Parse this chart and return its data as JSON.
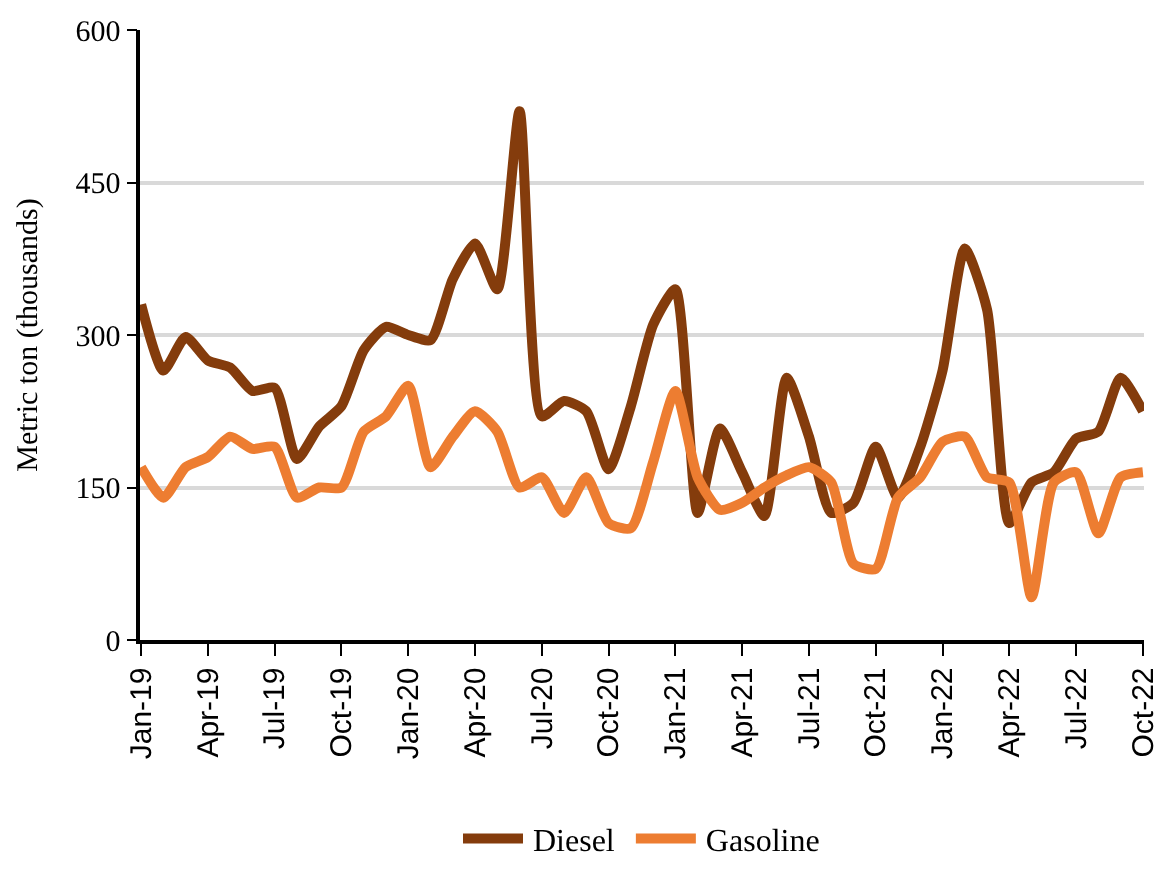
{
  "chart_data": {
    "type": "line",
    "ylabel": "Metric ton (thousands)",
    "categories": [
      "Jan-19",
      null,
      null,
      "Apr-19",
      null,
      null,
      "Jul-19",
      null,
      null,
      "Oct-19",
      null,
      null,
      "Jan-20",
      null,
      null,
      "Apr-20",
      null,
      null,
      "Jul-20",
      null,
      null,
      "Oct-20",
      null,
      null,
      "Jan-21",
      null,
      null,
      "Apr-21",
      null,
      null,
      "Jul-21",
      null,
      null,
      "Oct-21",
      null,
      null,
      "Jan-22",
      null,
      null,
      "Apr-22",
      null,
      null,
      "Jul-22",
      null,
      null,
      "Oct-22"
    ],
    "series": [
      {
        "name": "Diesel",
        "color": "#843c0c",
        "values": [
          330,
          265,
          298,
          275,
          268,
          245,
          248,
          178,
          210,
          230,
          285,
          308,
          300,
          295,
          355,
          390,
          345,
          520,
          220,
          235,
          225,
          168,
          230,
          310,
          345,
          125,
          208,
          165,
          122,
          258,
          200,
          125,
          135,
          190,
          140,
          190,
          265,
          385,
          325,
          115,
          155,
          165,
          198,
          205,
          258,
          225
        ]
      },
      {
        "name": "Gasoline",
        "color": "#ed7d31",
        "values": [
          170,
          140,
          170,
          180,
          200,
          188,
          190,
          140,
          150,
          150,
          205,
          220,
          250,
          170,
          200,
          225,
          205,
          150,
          160,
          125,
          160,
          115,
          110,
          175,
          245,
          160,
          128,
          135,
          150,
          162,
          170,
          155,
          75,
          70,
          140,
          160,
          195,
          200,
          160,
          155,
          42,
          155,
          165,
          105,
          160,
          165
        ]
      }
    ],
    "ylim": [
      0,
      600
    ],
    "yticks": [
      0,
      150,
      300,
      450,
      600
    ],
    "grid": "y",
    "legend": "bottom",
    "line_style": "solid"
  }
}
